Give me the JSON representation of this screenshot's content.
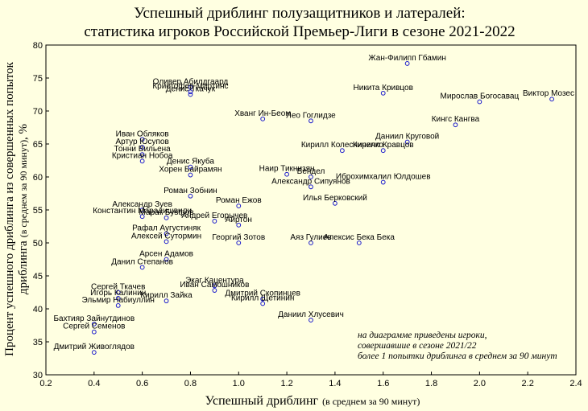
{
  "chart_data": {
    "type": "scatter",
    "title_line1": "Успешный дриблинг полузащитников и латералей:",
    "title_line2": "статистика игроков Российской Премьер-Лиги в сезоне 2021-2022",
    "xlabel_main": "Успешный дриблинг",
    "xlabel_sub": "(в среднем за 90 минут)",
    "ylabel_line1": "Процент успешного дриблинга из совершенных попыток",
    "ylabel_line2_main": "дриблинга",
    "ylabel_line2_sub": "(в среднем за 90 минут)",
    "ylabel_line2_end": ", %",
    "xlim": [
      0.2,
      2.4
    ],
    "ylim": [
      30,
      80
    ],
    "x_ticks": [
      "0.2",
      "0.4",
      "0.6",
      "0.8",
      "1.0",
      "1.2",
      "1.4",
      "1.6",
      "1.8",
      "2.0",
      "2.2",
      "2.4"
    ],
    "y_ticks": [
      "30",
      "35",
      "40",
      "45",
      "50",
      "55",
      "60",
      "65",
      "70",
      "75",
      "80"
    ],
    "grid": false,
    "marker_color": "#1a1acc",
    "note_lines": [
      "на диаграмме приведены игроки,",
      "совершавшие в сезоне 2021/22",
      "более 1 попытки дриблинга в среднем за 90 минут"
    ],
    "points": [
      {
        "name": "Жан-Филипп Гбамин",
        "x": 1.7,
        "y": 77.2
      },
      {
        "name": "Никита Кривцов",
        "x": 1.6,
        "y": 72.7
      },
      {
        "name": "Мирослав Богосавац",
        "x": 2.0,
        "y": 71.4
      },
      {
        "name": "Виктор Мозес",
        "x": 2.3,
        "y": 71.8
      },
      {
        "name": "Оливер Абилдгаард",
        "x": 0.8,
        "y": 73.6
      },
      {
        "name": "Кристофер Мартинс",
        "x": 0.8,
        "y": 72.9
      },
      {
        "name": "Денис Ткачук",
        "x": 0.8,
        "y": 72.5
      },
      {
        "name": "Хванг Ин-Беом",
        "x": 1.1,
        "y": 68.8
      },
      {
        "name": "Лео Гоглидзе",
        "x": 1.3,
        "y": 68.5
      },
      {
        "name": "Кингс Кангва",
        "x": 1.9,
        "y": 67.9
      },
      {
        "name": "Даниил Круговой",
        "x": 1.7,
        "y": 65.3
      },
      {
        "name": "Кирилл Кравцов",
        "x": 1.6,
        "y": 64.0
      },
      {
        "name": "Кирилл Колесниченко",
        "x": 1.43,
        "y": 64.0
      },
      {
        "name": "Иван Обляков",
        "x": 0.6,
        "y": 65.7
      },
      {
        "name": "Артур Юсупов",
        "x": 0.6,
        "y": 64.5
      },
      {
        "name": "Тонни Вильена",
        "x": 0.6,
        "y": 63.4
      },
      {
        "name": "Кристиан Нобоа",
        "x": 0.6,
        "y": 62.4
      },
      {
        "name": "Денис Якуба",
        "x": 0.8,
        "y": 61.5
      },
      {
        "name": "Хорен Байрамян",
        "x": 0.8,
        "y": 60.3
      },
      {
        "name": "Наир Тикнизян",
        "x": 1.2,
        "y": 60.4
      },
      {
        "name": "Вендел",
        "x": 1.3,
        "y": 60.0
      },
      {
        "name": "Иброхимхалил Юлдошев",
        "x": 1.6,
        "y": 59.2
      },
      {
        "name": "Александр Сипуянов",
        "x": 1.3,
        "y": 58.5
      },
      {
        "name": "Роман Зобнин",
        "x": 0.8,
        "y": 57.1
      },
      {
        "name": "Илья Берковский",
        "x": 1.4,
        "y": 56.0
      },
      {
        "name": "Роман Ежов",
        "x": 1.0,
        "y": 55.6
      },
      {
        "name": "Александр Зуев",
        "x": 0.6,
        "y": 55.0
      },
      {
        "name": "Константин Марадишвили",
        "x": 0.6,
        "y": 54.0
      },
      {
        "name": "Марат Бystров",
        "x": 0.7,
        "y": 53.8
      },
      {
        "name": "Андрей Егорычев",
        "x": 0.9,
        "y": 53.3
      },
      {
        "name": "Айртон",
        "x": 1.0,
        "y": 52.7
      },
      {
        "name": "Рафал Аугустиняк",
        "x": 0.7,
        "y": 51.4
      },
      {
        "name": "Алексей Сутормин",
        "x": 0.7,
        "y": 50.2
      },
      {
        "name": "Георгий Зотов",
        "x": 1.0,
        "y": 50.0
      },
      {
        "name": "Аяз Гулиев",
        "x": 1.3,
        "y": 50.0
      },
      {
        "name": "Алексис Бека Бека",
        "x": 1.5,
        "y": 50.0
      },
      {
        "name": "Арсен Адамов",
        "x": 0.7,
        "y": 47.5
      },
      {
        "name": "Данил Степанов",
        "x": 0.6,
        "y": 46.3
      },
      {
        "name": "Экаг Кацентура",
        "x": 0.9,
        "y": 43.5
      },
      {
        "name": "Иван Самошников",
        "x": 0.9,
        "y": 42.8
      },
      {
        "name": "Сергей Ткачев",
        "x": 0.5,
        "y": 42.5
      },
      {
        "name": "Игорь Калинин",
        "x": 0.5,
        "y": 41.6
      },
      {
        "name": "Кирилл Зайка",
        "x": 0.7,
        "y": 41.2
      },
      {
        "name": "Дмитрий Скопинцев",
        "x": 1.1,
        "y": 41.5
      },
      {
        "name": "Кирилл Щетинин",
        "x": 1.1,
        "y": 40.8
      },
      {
        "name": "Эльмир Набиуллин",
        "x": 0.5,
        "y": 40.5
      },
      {
        "name": "Даниил Хлусевич",
        "x": 1.3,
        "y": 38.3
      },
      {
        "name": "Бахтияр Зайнутдинов",
        "x": 0.4,
        "y": 37.7
      },
      {
        "name": "Сергей Семенов",
        "x": 0.4,
        "y": 36.5
      },
      {
        "name": "Дмитрий Живоглядов",
        "x": 0.4,
        "y": 33.4
      }
    ]
  }
}
